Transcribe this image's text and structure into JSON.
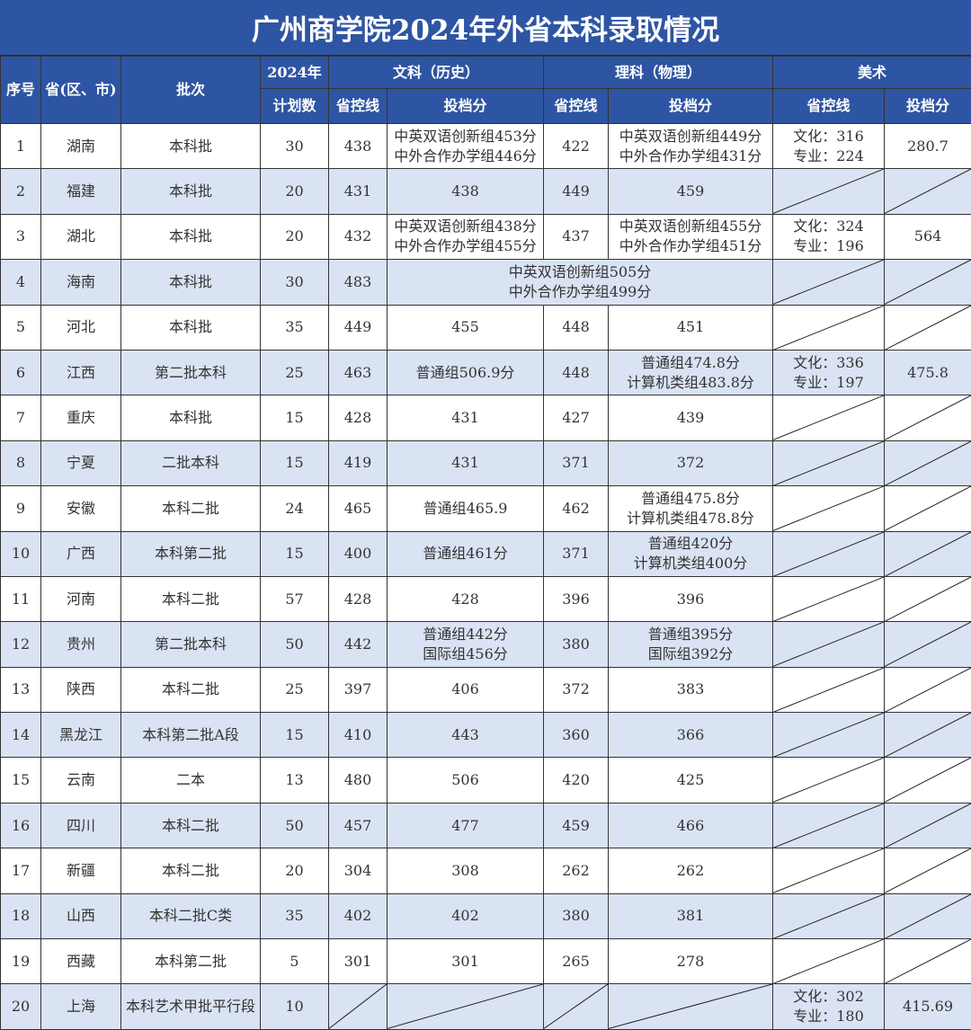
{
  "title": "广州商学院2024年外省本科录取情况",
  "headers": {
    "no": "序号",
    "province": "省(区、市)",
    "batch": "批次",
    "year": "2024年",
    "plan": "计划数",
    "wen": "文科（历史）",
    "li": "理科（物理）",
    "art": "美术",
    "control_line": "省控线",
    "score": "投档分"
  },
  "colors": {
    "header_bg": "#2e55a3",
    "alt_row": "#dae3f3"
  },
  "rows": [
    {
      "no": "1",
      "province": "湖南",
      "batch": "本科批",
      "plan": "30",
      "wen_line": "438",
      "wen_score": [
        "中英双语创新组453分",
        "中外合作办学组446分"
      ],
      "li_line": "422",
      "li_score": [
        "中英双语创新组449分",
        "中外合作办学组431分"
      ],
      "art_line": [
        "文化：316",
        "专业：224"
      ],
      "art_score": [
        "280.7"
      ]
    },
    {
      "no": "2",
      "province": "福建",
      "batch": "本科批",
      "plan": "20",
      "wen_line": "431",
      "wen_score": [
        "438"
      ],
      "li_line": "449",
      "li_score": [
        "459"
      ],
      "art_line": null,
      "art_score": null
    },
    {
      "no": "3",
      "province": "湖北",
      "batch": "本科批",
      "plan": "20",
      "wen_line": "432",
      "wen_score": [
        "中英双语创新组438分",
        "中外合作办学组455分"
      ],
      "li_line": "437",
      "li_score": [
        "中英双语创新组455分",
        "中外合作办学组451分"
      ],
      "art_line": [
        "文化：324",
        "专业：196"
      ],
      "art_score": [
        "564"
      ]
    },
    {
      "no": "4",
      "province": "海南",
      "batch": "本科批",
      "plan": "30",
      "wen_line": "483",
      "merged_score": [
        "中英双语创新组505分",
        "中外合作办学组499分"
      ],
      "art_line": null,
      "art_score": null
    },
    {
      "no": "5",
      "province": "河北",
      "batch": "本科批",
      "plan": "35",
      "wen_line": "449",
      "wen_score": [
        "455"
      ],
      "li_line": "448",
      "li_score": [
        "451"
      ],
      "art_line": null,
      "art_score": null
    },
    {
      "no": "6",
      "province": "江西",
      "batch": "第二批本科",
      "plan": "25",
      "wen_line": "463",
      "wen_score": [
        "普通组506.9分"
      ],
      "li_line": "448",
      "li_score": [
        "普通组474.8分",
        "计算机类组483.8分"
      ],
      "art_line": [
        "文化：336",
        "专业：197"
      ],
      "art_score": [
        "475.8"
      ]
    },
    {
      "no": "7",
      "province": "重庆",
      "batch": "本科批",
      "plan": "15",
      "wen_line": "428",
      "wen_score": [
        "431"
      ],
      "li_line": "427",
      "li_score": [
        "439"
      ],
      "art_line": null,
      "art_score": null
    },
    {
      "no": "8",
      "province": "宁夏",
      "batch": "二批本科",
      "plan": "15",
      "wen_line": "419",
      "wen_score": [
        "431"
      ],
      "li_line": "371",
      "li_score": [
        "372"
      ],
      "art_line": null,
      "art_score": null
    },
    {
      "no": "9",
      "province": "安徽",
      "batch": "本科二批",
      "plan": "24",
      "wen_line": "465",
      "wen_score": [
        "普通组465.9"
      ],
      "li_line": "462",
      "li_score": [
        "普通组475.8分",
        "计算机类组478.8分"
      ],
      "art_line": null,
      "art_score": null
    },
    {
      "no": "10",
      "province": "广西",
      "batch": "本科第二批",
      "plan": "15",
      "wen_line": "400",
      "wen_score": [
        "普通组461分"
      ],
      "li_line": "371",
      "li_score": [
        "普通组420分",
        "计算机类组400分"
      ],
      "art_line": null,
      "art_score": null
    },
    {
      "no": "11",
      "province": "河南",
      "batch": "本科二批",
      "plan": "57",
      "wen_line": "428",
      "wen_score": [
        "428"
      ],
      "li_line": "396",
      "li_score": [
        "396"
      ],
      "art_line": null,
      "art_score": null
    },
    {
      "no": "12",
      "province": "贵州",
      "batch": "第二批本科",
      "plan": "50",
      "wen_line": "442",
      "wen_score": [
        "普通组442分",
        "国际组456分"
      ],
      "li_line": "380",
      "li_score": [
        "普通组395分",
        "国际组392分"
      ],
      "art_line": null,
      "art_score": null
    },
    {
      "no": "13",
      "province": "陕西",
      "batch": "本科二批",
      "plan": "25",
      "wen_line": "397",
      "wen_score": [
        "406"
      ],
      "li_line": "372",
      "li_score": [
        "383"
      ],
      "art_line": null,
      "art_score": null
    },
    {
      "no": "14",
      "province": "黑龙江",
      "batch": "本科第二批A段",
      "plan": "15",
      "wen_line": "410",
      "wen_score": [
        "443"
      ],
      "li_line": "360",
      "li_score": [
        "366"
      ],
      "art_line": null,
      "art_score": null
    },
    {
      "no": "15",
      "province": "云南",
      "batch": "二本",
      "plan": "13",
      "wen_line": "480",
      "wen_score": [
        "506"
      ],
      "li_line": "420",
      "li_score": [
        "425"
      ],
      "art_line": null,
      "art_score": null
    },
    {
      "no": "16",
      "province": "四川",
      "batch": "本科二批",
      "plan": "50",
      "wen_line": "457",
      "wen_score": [
        "477"
      ],
      "li_line": "459",
      "li_score": [
        "466"
      ],
      "art_line": null,
      "art_score": null
    },
    {
      "no": "17",
      "province": "新疆",
      "batch": "本科二批",
      "plan": "20",
      "wen_line": "304",
      "wen_score": [
        "308"
      ],
      "li_line": "262",
      "li_score": [
        "262"
      ],
      "art_line": null,
      "art_score": null
    },
    {
      "no": "18",
      "province": "山西",
      "batch": "本科二批C类",
      "plan": "35",
      "wen_line": "402",
      "wen_score": [
        "402"
      ],
      "li_line": "380",
      "li_score": [
        "381"
      ],
      "art_line": null,
      "art_score": null
    },
    {
      "no": "19",
      "province": "西藏",
      "batch": "本科第二批",
      "plan": "5",
      "wen_line": "301",
      "wen_score": [
        "301"
      ],
      "li_line": "265",
      "li_score": [
        "278"
      ],
      "art_line": null,
      "art_score": null
    },
    {
      "no": "20",
      "province": "上海",
      "batch": "本科艺术甲批平行段",
      "plan": "10",
      "wen_line": null,
      "wen_score": null,
      "li_line": null,
      "li_score": null,
      "art_line": [
        "文化：302",
        "专业：180"
      ],
      "art_score": [
        "415.69"
      ]
    }
  ]
}
